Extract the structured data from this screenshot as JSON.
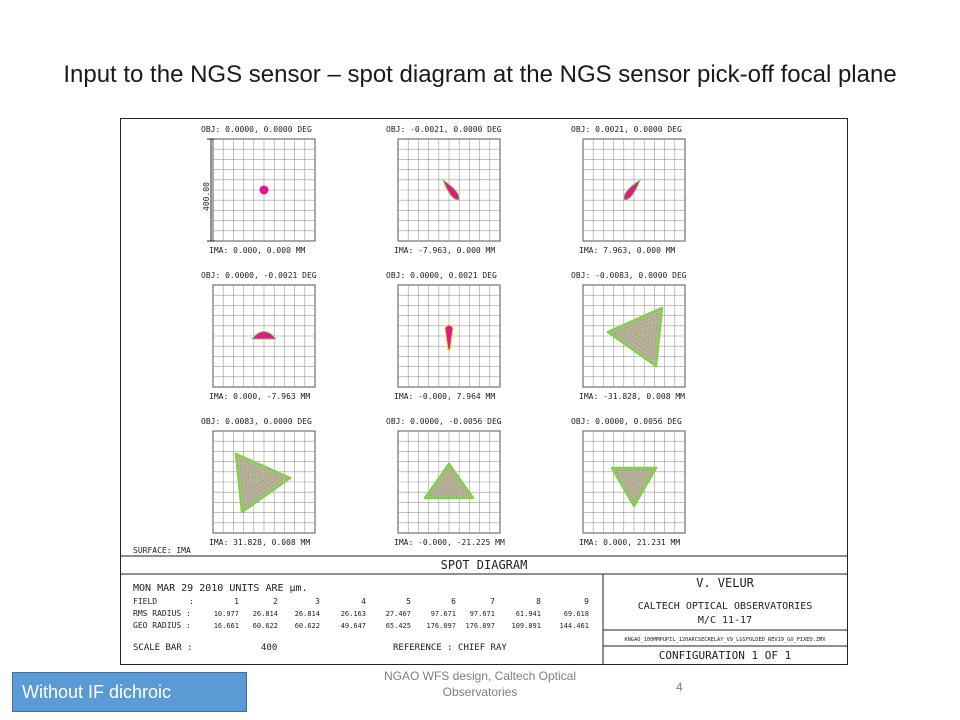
{
  "slide": {
    "title": "Input to the NGS sensor – spot diagram at the NGS sensor pick-off focal plane",
    "footer": "NGAO WFS design, Caltech Optical Observatories",
    "page_number": "4",
    "badge": "Without IF dichroic"
  },
  "figure": {
    "scale_label": "400.00",
    "surface_label": "SURFACE: IMA",
    "heading": "SPOT DIAGRAM",
    "date_line": "MON MAR 29 2010  UNITS ARE µm.",
    "field_label": "FIELD",
    "rms_label": "RMS RADIUS :",
    "geo_label": "GEO RADIUS :",
    "scale_bar_label": "SCALE BAR  :",
    "scale_bar_value": "400",
    "reference_label": "REFERENCE  : CHIEF RAY",
    "field_numbers": [
      "1",
      "2",
      "3",
      "4",
      "5",
      "6",
      "7",
      "8",
      "9"
    ],
    "rms_values": [
      "10.977",
      "26.814",
      "26.814",
      "26.163",
      "27.467",
      "97.671",
      "97.671",
      "61.941",
      "69.618"
    ],
    "geo_values": [
      "16.661",
      "60.622",
      "60.622",
      "49.647",
      "65.425",
      "176.097",
      "176.097",
      "109.891",
      "144.461"
    ],
    "author": "V. VELUR",
    "institution": "CALTECH OPTICAL OBSERVATORIES",
    "mc": "M/C  11-17",
    "filename": "KNGAO_100MMPUPIL_120ARCSECRELAY_V9_LGSFOLDED_REV19_GO_FIXED.ZMX",
    "configuration": "CONFIGURATION  1  OF  1",
    "colors": {
      "magenta": "#e0188c",
      "green": "#7fd14a",
      "yellow": "#e8e020",
      "grid": "#9a9a9a"
    },
    "spots": [
      {
        "obj": "OBJ: 0.0000, 0.0000 DEG",
        "ima": "IMA: 0.000, 0.000 MM",
        "shape": "dot"
      },
      {
        "obj": "OBJ: -0.0021, 0.0000 DEG",
        "ima": "IMA: -7.963, 0.000 MM",
        "shape": "teardrop-left"
      },
      {
        "obj": "OBJ: 0.0021, 0.0000 DEG",
        "ima": "IMA: 7.963, 0.000 MM",
        "shape": "teardrop-right"
      },
      {
        "obj": "OBJ: 0.0000, -0.0021 DEG",
        "ima": "IMA: 0.000, -7.963 MM",
        "shape": "dome"
      },
      {
        "obj": "OBJ: 0.0000, 0.0021 DEG",
        "ima": "IMA: -0.000, 7.964 MM",
        "shape": "teardrop-down"
      },
      {
        "obj": "OBJ: -0.0083, 0.0000 DEG",
        "ima": "IMA: -31.828, 0.008 MM",
        "shape": "triangle-left"
      },
      {
        "obj": "OBJ: 0.0083, 0.0000 DEG",
        "ima": "IMA: 31.828, 0.008 MM",
        "shape": "triangle-right"
      },
      {
        "obj": "OBJ: 0.0000, -0.0056 DEG",
        "ima": "IMA: -0.000, -21.225 MM",
        "shape": "triangle-up"
      },
      {
        "obj": "OBJ: 0.0000, 0.0056 DEG",
        "ima": "IMA: 0.000, 21.231 MM",
        "shape": "triangle-down"
      }
    ]
  }
}
